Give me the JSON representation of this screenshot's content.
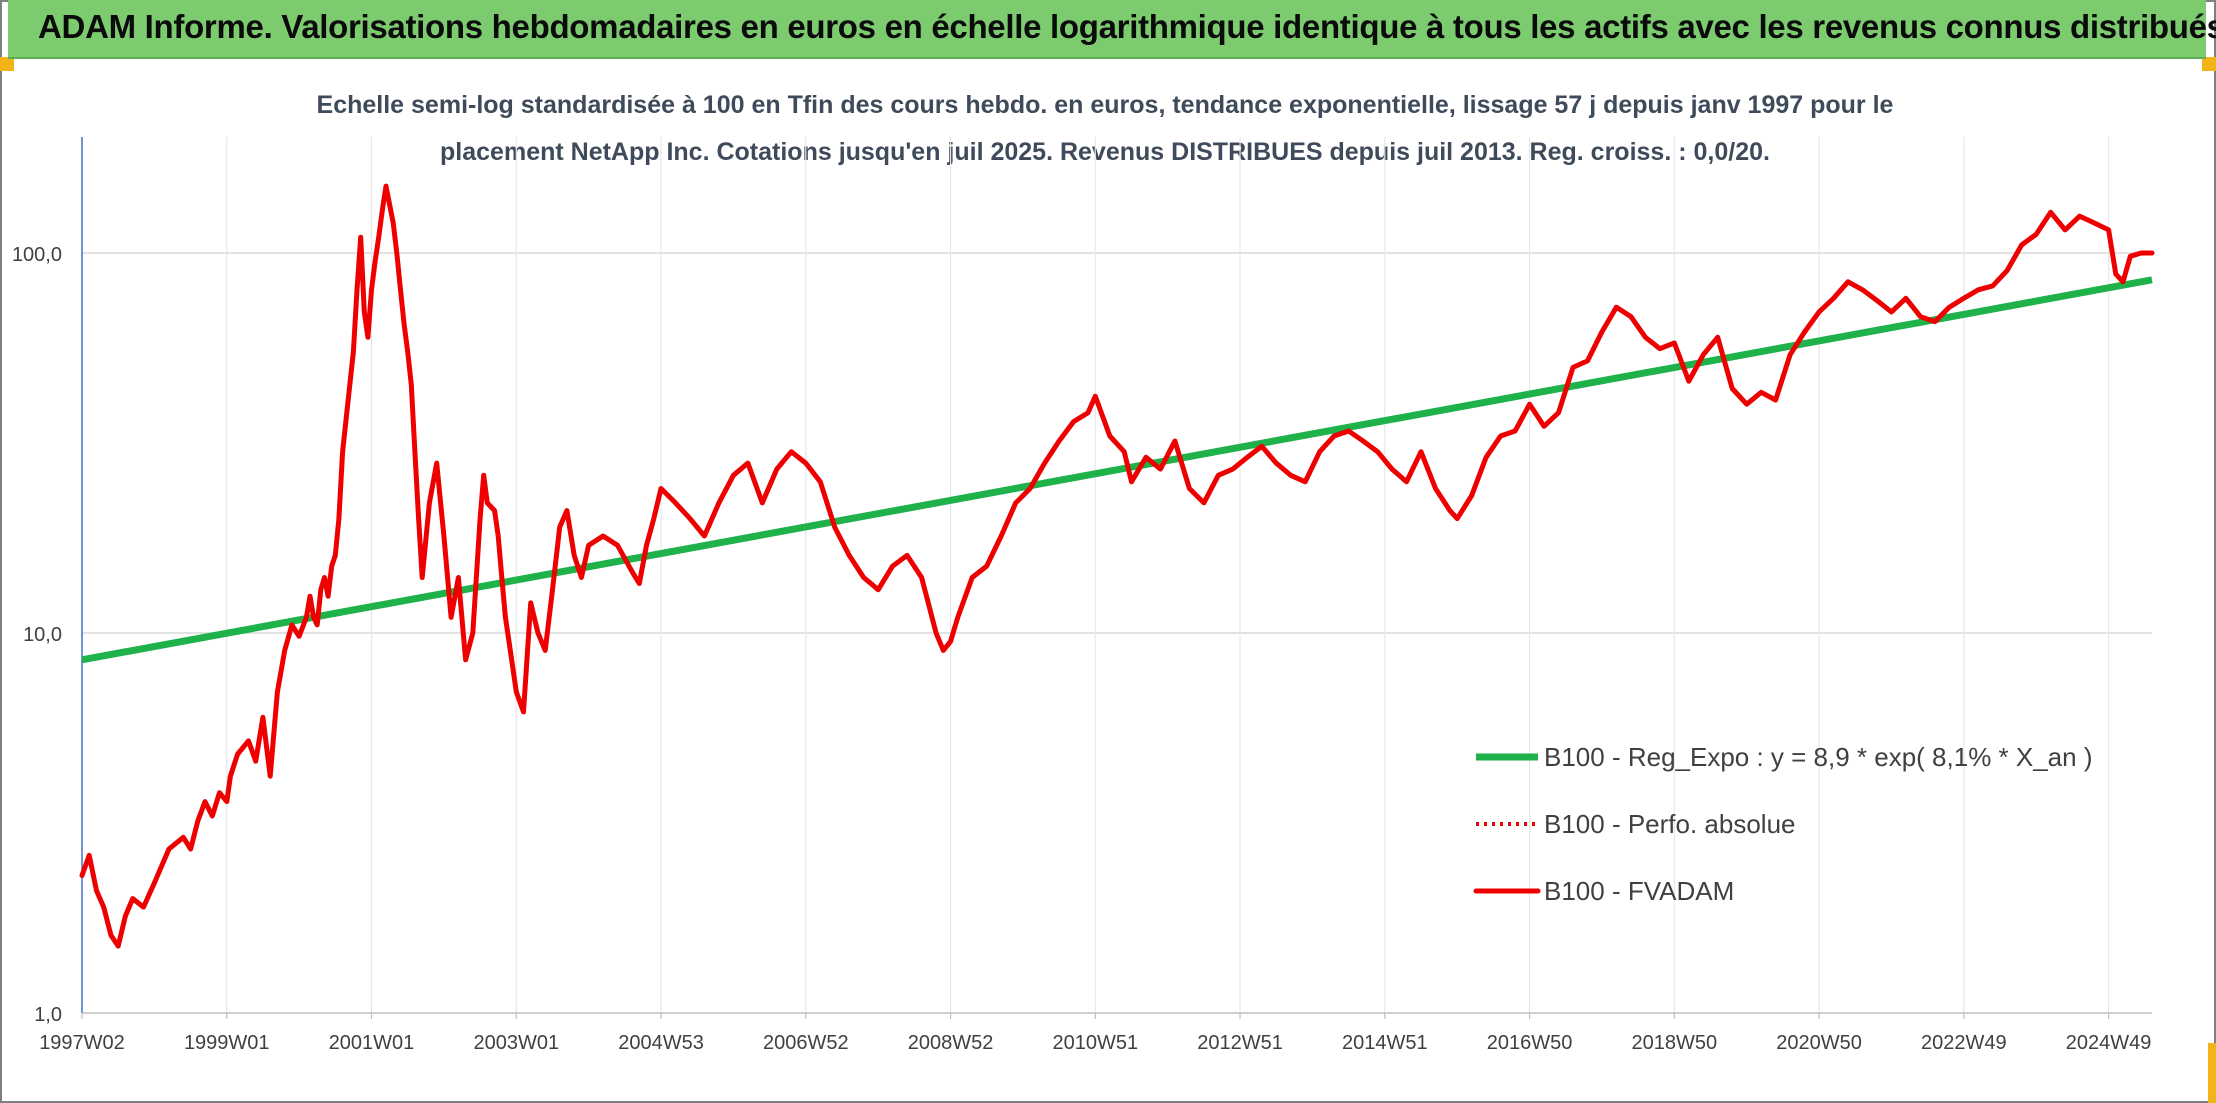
{
  "header": {
    "title": "ADAM Informe. Valorisations hebdomadaires en euros en échelle logarithmique identique à tous les actifs avec les revenus connus distribués"
  },
  "colors": {
    "header_bg": "#7ccb6f",
    "regression": "#1fb14a",
    "series": "#ee0000",
    "grid": "#d9d9d9",
    "title_text": "#3f4b5b",
    "axis_text": "#404040",
    "corner": "#f2b418"
  },
  "chart_data": {
    "type": "line",
    "y_scale": "log",
    "ylim": [
      1,
      150
    ],
    "title_line1": "Echelle semi-log standardisée à 100 en Tfin des cours hebdo. en euros, tendance exponentielle, lissage 57 j depuis janv 1997 pour le",
    "title_line2": "placement NetApp Inc. Cotations jusqu'en juil 2025. Revenus DISTRIBUES depuis juil 2013. Reg. croiss. : 0,0/20.",
    "y_ticks": [
      "1,0",
      "10,0",
      "100,0"
    ],
    "y_tick_values": [
      1,
      10,
      100
    ],
    "x_ticks": [
      "1997W02",
      "1999W01",
      "2001W01",
      "2003W01",
      "2004W53",
      "2006W52",
      "2008W52",
      "2010W51",
      "2012W51",
      "2014W51",
      "2016W50",
      "2018W50",
      "2020W50",
      "2022W49",
      "2024W49"
    ],
    "x_tick_years": [
      1997.0,
      1999.0,
      2001.0,
      2003.0,
      2005.0,
      2007.0,
      2009.0,
      2011.0,
      2013.0,
      2015.0,
      2017.0,
      2019.0,
      2021.0,
      2023.0,
      2025.0
    ],
    "x_range": [
      1997.0,
      2025.6
    ],
    "grid": true,
    "legend_position": "right",
    "series": [
      {
        "name": "B100 - Reg_Expo : y = 8,9 * exp( 8,1% *  X_an )",
        "style": "solid-thick-green",
        "x": [
          1997.0,
          2025.6
        ],
        "y": [
          8.5,
          85
        ]
      },
      {
        "name": "B100 - Perfo. absolue",
        "style": "dotted-red",
        "x": [],
        "y": []
      },
      {
        "name": "B100 - FVADAM",
        "style": "solid-thick-red",
        "x": [
          1997.0,
          1997.1,
          1997.2,
          1997.3,
          1997.4,
          1997.5,
          1997.6,
          1997.7,
          1997.85,
          1998.0,
          1998.2,
          1998.4,
          1998.5,
          1998.6,
          1998.7,
          1998.8,
          1998.9,
          1999.0,
          1999.05,
          1999.15,
          1999.3,
          1999.4,
          1999.5,
          1999.6,
          1999.7,
          1999.8,
          1999.9,
          2000.0,
          2000.1,
          2000.15,
          2000.2,
          2000.25,
          2000.3,
          2000.35,
          2000.4,
          2000.45,
          2000.5,
          2000.55,
          2000.6,
          2000.7,
          2000.75,
          2000.8,
          2000.85,
          2000.9,
          2000.95,
          2001.0,
          2001.05,
          2001.1,
          2001.15,
          2001.2,
          2001.3,
          2001.35,
          2001.4,
          2001.45,
          2001.5,
          2001.55,
          2001.6,
          2001.65,
          2001.7,
          2001.8,
          2001.9,
          2002.0,
          2002.1,
          2002.2,
          2002.3,
          2002.4,
          2002.5,
          2002.55,
          2002.6,
          2002.7,
          2002.75,
          2002.8,
          2002.85,
          2002.9,
          2003.0,
          2003.1,
          2003.2,
          2003.3,
          2003.4,
          2003.5,
          2003.6,
          2003.7,
          2003.8,
          2003.9,
          2004.0,
          2004.2,
          2004.4,
          2004.6,
          2004.7,
          2004.8,
          2004.9,
          2005.0,
          2005.2,
          2005.4,
          2005.6,
          2005.8,
          2006.0,
          2006.2,
          2006.4,
          2006.6,
          2006.8,
          2007.0,
          2007.2,
          2007.4,
          2007.6,
          2007.8,
          2008.0,
          2008.2,
          2008.4,
          2008.6,
          2008.8,
          2008.9,
          2009.0,
          2009.1,
          2009.3,
          2009.5,
          2009.7,
          2009.9,
          2010.1,
          2010.3,
          2010.5,
          2010.7,
          2010.9,
          2011.0,
          2011.2,
          2011.4,
          2011.5,
          2011.7,
          2011.9,
          2012.1,
          2012.3,
          2012.5,
          2012.7,
          2012.9,
          2013.1,
          2013.3,
          2013.5,
          2013.7,
          2013.9,
          2014.1,
          2014.3,
          2014.5,
          2014.7,
          2014.9,
          2015.1,
          2015.3,
          2015.5,
          2015.7,
          2015.9,
          2016.0,
          2016.2,
          2016.4,
          2016.6,
          2016.8,
          2017.0,
          2017.2,
          2017.4,
          2017.6,
          2017.8,
          2018.0,
          2018.2,
          2018.4,
          2018.6,
          2018.8,
          2019.0,
          2019.2,
          2019.4,
          2019.6,
          2019.8,
          2020.0,
          2020.2,
          2020.4,
          2020.6,
          2020.8,
          2021.0,
          2021.2,
          2021.4,
          2021.6,
          2021.8,
          2022.0,
          2022.2,
          2022.4,
          2022.6,
          2022.8,
          2023.0,
          2023.2,
          2023.4,
          2023.6,
          2023.8,
          2024.0,
          2024.2,
          2024.4,
          2024.6,
          2024.8,
          2025.0,
          2025.1,
          2025.2,
          2025.3,
          2025.45,
          2025.6
        ],
        "y": [
          2.3,
          2.6,
          2.1,
          1.9,
          1.6,
          1.5,
          1.8,
          2.0,
          1.9,
          2.2,
          2.7,
          2.9,
          2.7,
          3.2,
          3.6,
          3.3,
          3.8,
          3.6,
          4.2,
          4.8,
          5.2,
          4.6,
          6.0,
          4.2,
          7.0,
          9.0,
          10.5,
          9.8,
          11.0,
          12.5,
          11.0,
          10.5,
          13.0,
          14.0,
          12.5,
          15.0,
          16.0,
          20.0,
          30.0,
          45.0,
          55.0,
          80.0,
          110.0,
          70.0,
          60.0,
          80.0,
          95.0,
          110.0,
          130.0,
          150.0,
          120.0,
          100.0,
          80.0,
          65.0,
          55.0,
          45.0,
          30.0,
          20.0,
          14.0,
          22.0,
          28.0,
          18.0,
          11.0,
          14.0,
          8.5,
          10.0,
          20.0,
          26.0,
          22.0,
          21.0,
          18.0,
          14.0,
          11.0,
          9.5,
          7.0,
          6.2,
          12.0,
          10.0,
          9.0,
          13.0,
          19.0,
          21.0,
          16.0,
          14.0,
          17.0,
          18.0,
          17.0,
          14.5,
          13.5,
          17.0,
          20.0,
          24.0,
          22.0,
          20.0,
          18.0,
          22.0,
          26.0,
          28.0,
          22.0,
          27.0,
          30.0,
          28.0,
          25.0,
          19.0,
          16.0,
          14.0,
          13.0,
          15.0,
          16.0,
          14.0,
          10.0,
          9.0,
          9.5,
          11.0,
          14.0,
          15.0,
          18.0,
          22.0,
          24.0,
          28.0,
          32.0,
          36.0,
          38.0,
          42.0,
          33.0,
          30.0,
          25.0,
          29.0,
          27.0,
          32.0,
          24.0,
          22.0,
          26.0,
          27.0,
          29.0,
          31.0,
          28.0,
          26.0,
          25.0,
          30.0,
          33.0,
          34.0,
          32.0,
          30.0,
          27.0,
          25.0,
          30.0,
          24.0,
          21.0,
          20.0,
          23.0,
          29.0,
          33.0,
          34.0,
          40.0,
          35.0,
          38.0,
          50.0,
          52.0,
          62.0,
          72.0,
          68.0,
          60.0,
          56.0,
          58.0,
          46.0,
          54.0,
          60.0,
          44.0,
          40.0,
          43.0,
          41.0,
          54.0,
          62.0,
          70.0,
          76.0,
          84.0,
          80.0,
          75.0,
          70.0,
          76.0,
          68.0,
          66.0,
          72.0,
          76.0,
          80.0,
          82.0,
          90.0,
          105.0,
          112.0,
          128.0,
          115.0,
          125.0,
          120.0,
          115.0,
          88.0,
          84.0,
          98.0,
          100.0,
          100.0
        ]
      }
    ]
  }
}
